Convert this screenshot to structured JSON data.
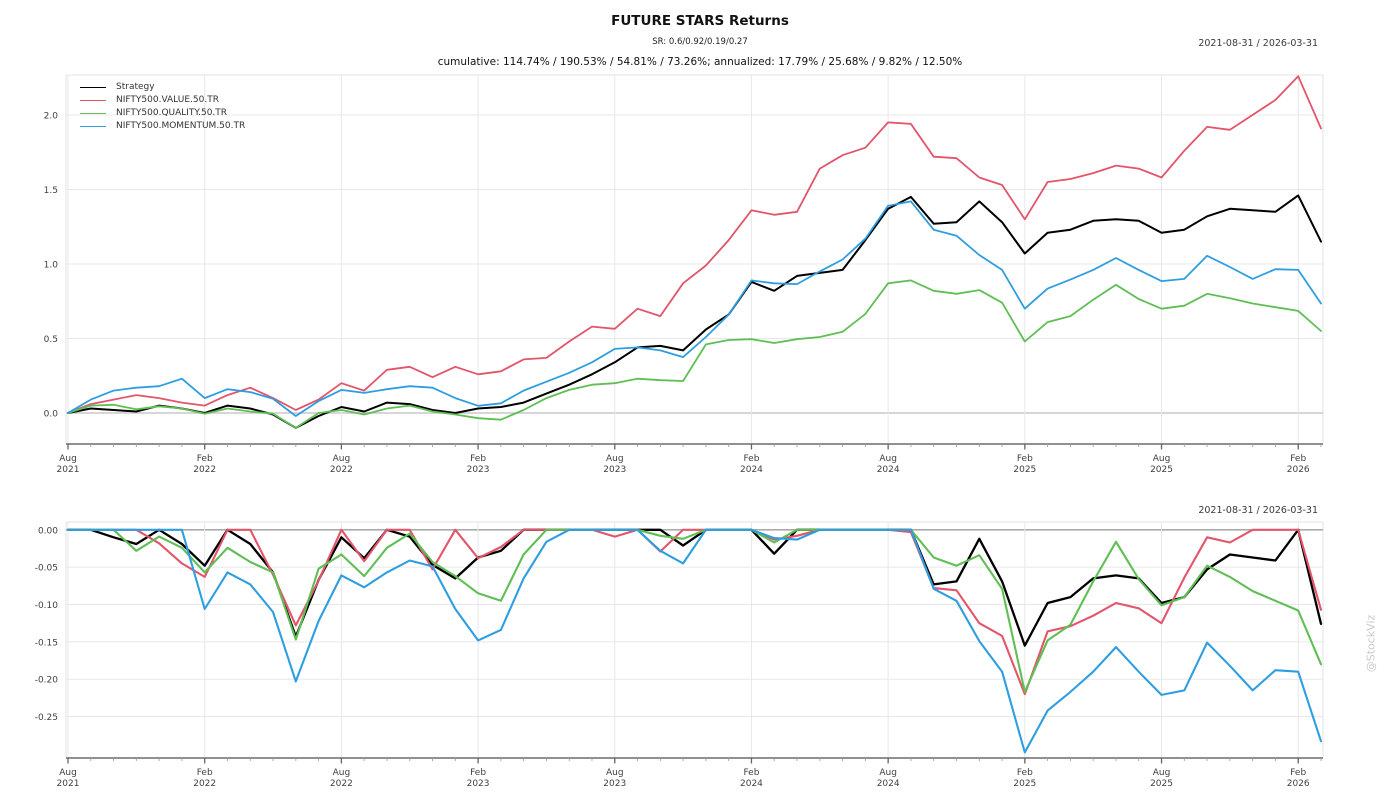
{
  "header": {
    "title": "FUTURE STARS Returns",
    "subtitle": "SR: 0.6/0.92/0.19/0.27",
    "summary": "cumulative: 114.74% / 190.53% / 54.81% / 73.26%; annualized: 17.79% / 25.68% / 9.82% / 12.50%",
    "date_range": "2021-08-31 / 2026-03-31"
  },
  "watermark": "@StockViz",
  "colors": {
    "grid": "#e8e8e8",
    "zero_line_top": "#c8c8c8",
    "zero_line_bottom": "#ababab",
    "axis": "#808080",
    "minor_tick": "#a0a0a0",
    "tick_label": "#3f3f3f",
    "border": "#e3e3e3"
  },
  "chart_data": [
    {
      "type": "line",
      "name": "cumulative-returns",
      "date_label": "2021-08-31 / 2026-03-31",
      "x_months": [
        "2021-08",
        "2021-09",
        "2021-10",
        "2021-11",
        "2021-12",
        "2022-01",
        "2022-02",
        "2022-03",
        "2022-04",
        "2022-05",
        "2022-06",
        "2022-07",
        "2022-08",
        "2022-09",
        "2022-10",
        "2022-11",
        "2022-12",
        "2023-01",
        "2023-02",
        "2023-03",
        "2023-04",
        "2023-05",
        "2023-06",
        "2023-07",
        "2023-08",
        "2023-09",
        "2023-10",
        "2023-11",
        "2023-12",
        "2024-01",
        "2024-02",
        "2024-03",
        "2024-04",
        "2024-05",
        "2024-06",
        "2024-07",
        "2024-08",
        "2024-09",
        "2024-10",
        "2024-11",
        "2024-12",
        "2025-01",
        "2025-02",
        "2025-03",
        "2025-04",
        "2025-05",
        "2025-06",
        "2025-07",
        "2025-08",
        "2025-09",
        "2025-10",
        "2025-11",
        "2025-12",
        "2026-01",
        "2026-02",
        "2026-03"
      ],
      "x_ticks": [
        {
          "index": 0,
          "month": "Aug",
          "year": "2021"
        },
        {
          "index": 6,
          "month": "Feb",
          "year": "2022"
        },
        {
          "index": 12,
          "month": "Aug",
          "year": "2022"
        },
        {
          "index": 18,
          "month": "Feb",
          "year": "2023"
        },
        {
          "index": 24,
          "month": "Aug",
          "year": "2023"
        },
        {
          "index": 30,
          "month": "Feb",
          "year": "2024"
        },
        {
          "index": 36,
          "month": "Aug",
          "year": "2024"
        },
        {
          "index": 42,
          "month": "Feb",
          "year": "2025"
        },
        {
          "index": 48,
          "month": "Aug",
          "year": "2025"
        },
        {
          "index": 54,
          "month": "Feb",
          "year": "2026"
        }
      ],
      "y_ticks": [
        {
          "v": 0.0,
          "label": "0.0"
        },
        {
          "v": 0.5,
          "label": "0.5"
        },
        {
          "v": 1.0,
          "label": "1.0"
        },
        {
          "v": 1.5,
          "label": "1.5"
        },
        {
          "v": 2.0,
          "label": "2.0"
        }
      ],
      "ylim": [
        -0.208,
        2.268
      ],
      "legend_position": "top-left",
      "series": [
        {
          "name": "Strategy",
          "color": "#000000",
          "values": [
            0,
            0.03,
            0.02,
            0.01,
            0.05,
            0.03,
            0,
            0.05,
            0.03,
            -0.01,
            -0.1,
            -0.02,
            0.04,
            0.01,
            0.07,
            0.06,
            0.02,
            0,
            0.03,
            0.04,
            0.07,
            0.13,
            0.19,
            0.26,
            0.34,
            0.44,
            0.45,
            0.42,
            0.56,
            0.66,
            0.88,
            0.82,
            0.92,
            0.94,
            0.96,
            1.16,
            1.37,
            1.45,
            1.27,
            1.28,
            1.42,
            1.28,
            1.07,
            1.21,
            1.23,
            1.29,
            1.3,
            1.29,
            1.21,
            1.23,
            1.32,
            1.37,
            1.36,
            1.35,
            1.46,
            1.15
          ]
        },
        {
          "name": "NIFTY500.VALUE.50.TR",
          "color": "#e2556b",
          "values": [
            0,
            0.06,
            0.09,
            0.12,
            0.1,
            0.07,
            0.05,
            0.12,
            0.17,
            0.1,
            0.02,
            0.09,
            0.2,
            0.15,
            0.29,
            0.31,
            0.24,
            0.31,
            0.26,
            0.28,
            0.36,
            0.37,
            0.48,
            0.58,
            0.565,
            0.7,
            0.65,
            0.87,
            0.99,
            1.16,
            1.36,
            1.33,
            1.35,
            1.64,
            1.73,
            1.78,
            1.95,
            1.94,
            1.72,
            1.71,
            1.58,
            1.53,
            1.3,
            1.55,
            1.57,
            1.61,
            1.66,
            1.64,
            1.58,
            1.76,
            1.92,
            1.9,
            2.0,
            2.1,
            2.26,
            1.91
          ]
        },
        {
          "name": "NIFTY500.QUALITY.50.TR",
          "color": "#5fbf54",
          "values": [
            0,
            0.05,
            0.055,
            0.025,
            0.045,
            0.03,
            -0.005,
            0.03,
            0.01,
            -0.005,
            -0.1,
            0,
            0.02,
            -0.01,
            0.03,
            0.05,
            0.01,
            -0.01,
            -0.035,
            -0.045,
            0.02,
            0.1,
            0.155,
            0.19,
            0.2,
            0.23,
            0.22,
            0.215,
            0.46,
            0.49,
            0.495,
            0.47,
            0.495,
            0.51,
            0.545,
            0.665,
            0.87,
            0.89,
            0.82,
            0.8,
            0.825,
            0.74,
            0.48,
            0.61,
            0.65,
            0.76,
            0.86,
            0.765,
            0.7,
            0.72,
            0.8,
            0.77,
            0.735,
            0.71,
            0.685,
            0.55
          ]
        },
        {
          "name": "NIFTY500.MOMENTUM.50.TR",
          "color": "#2e9ee0",
          "values": [
            0,
            0.09,
            0.15,
            0.17,
            0.18,
            0.23,
            0.1,
            0.16,
            0.14,
            0.095,
            -0.02,
            0.08,
            0.155,
            0.135,
            0.16,
            0.18,
            0.17,
            0.1,
            0.048,
            0.065,
            0.15,
            0.21,
            0.27,
            0.34,
            0.43,
            0.44,
            0.42,
            0.375,
            0.51,
            0.66,
            0.89,
            0.87,
            0.865,
            0.95,
            1.03,
            1.17,
            1.39,
            1.42,
            1.23,
            1.19,
            1.06,
            0.96,
            0.7,
            0.835,
            0.895,
            0.96,
            1.04,
            0.96,
            0.885,
            0.9,
            1.055,
            0.98,
            0.9,
            0.965,
            0.96,
            0.735
          ]
        }
      ]
    },
    {
      "type": "line",
      "name": "drawdowns",
      "date_label": "2021-08-31 / 2026-03-31",
      "x_months": [
        "2021-08",
        "2021-09",
        "2021-10",
        "2021-11",
        "2021-12",
        "2022-01",
        "2022-02",
        "2022-03",
        "2022-04",
        "2022-05",
        "2022-06",
        "2022-07",
        "2022-08",
        "2022-09",
        "2022-10",
        "2022-11",
        "2022-12",
        "2023-01",
        "2023-02",
        "2023-03",
        "2023-04",
        "2023-05",
        "2023-06",
        "2023-07",
        "2023-08",
        "2023-09",
        "2023-10",
        "2023-11",
        "2023-12",
        "2024-01",
        "2024-02",
        "2024-03",
        "2024-04",
        "2024-05",
        "2024-06",
        "2024-07",
        "2024-08",
        "2024-09",
        "2024-10",
        "2024-11",
        "2024-12",
        "2025-01",
        "2025-02",
        "2025-03",
        "2025-04",
        "2025-05",
        "2025-06",
        "2025-07",
        "2025-08",
        "2025-09",
        "2025-10",
        "2025-11",
        "2025-12",
        "2026-01",
        "2026-02",
        "2026-03"
      ],
      "x_ticks": [
        {
          "index": 0,
          "month": "Aug",
          "year": "2021"
        },
        {
          "index": 6,
          "month": "Feb",
          "year": "2022"
        },
        {
          "index": 12,
          "month": "Aug",
          "year": "2022"
        },
        {
          "index": 18,
          "month": "Feb",
          "year": "2023"
        },
        {
          "index": 24,
          "month": "Aug",
          "year": "2023"
        },
        {
          "index": 30,
          "month": "Feb",
          "year": "2024"
        },
        {
          "index": 36,
          "month": "Aug",
          "year": "2024"
        },
        {
          "index": 42,
          "month": "Feb",
          "year": "2025"
        },
        {
          "index": 48,
          "month": "Aug",
          "year": "2025"
        },
        {
          "index": 54,
          "month": "Feb",
          "year": "2026"
        }
      ],
      "y_ticks": [
        {
          "v": 0.0,
          "label": "0.00"
        },
        {
          "v": -0.05,
          "label": "-0.05"
        },
        {
          "v": -0.1,
          "label": "-0.10"
        },
        {
          "v": -0.15,
          "label": "-0.15"
        },
        {
          "v": -0.2,
          "label": "-0.20"
        },
        {
          "v": -0.25,
          "label": "-0.25"
        }
      ],
      "ylim": [
        -0.3055,
        0.0105
      ],
      "legend_position": "none",
      "series": [
        {
          "name": "Strategy",
          "color": "#000000",
          "values": [
            0,
            0,
            -0.01,
            -0.019,
            0,
            -0.019,
            -0.048,
            0,
            -0.019,
            -0.057,
            -0.143,
            -0.067,
            -0.01,
            -0.038,
            0,
            -0.009,
            -0.047,
            -0.065,
            -0.037,
            -0.028,
            0,
            0,
            0,
            0,
            0,
            0,
            0,
            -0.021,
            0,
            0,
            0,
            -0.032,
            0,
            0,
            0,
            0,
            0,
            0,
            -0.073,
            -0.069,
            -0.012,
            -0.069,
            -0.155,
            -0.098,
            -0.09,
            -0.065,
            -0.061,
            -0.065,
            -0.098,
            -0.09,
            -0.053,
            -0.033,
            -0.037,
            -0.041,
            0,
            -0.126
          ]
        },
        {
          "name": "NIFTY500.VALUE.50.TR",
          "color": "#e2556b",
          "values": [
            0,
            0,
            0,
            0,
            -0.018,
            -0.045,
            -0.063,
            0,
            0,
            -0.06,
            -0.128,
            -0.068,
            0,
            -0.042,
            0,
            0,
            -0.053,
            0,
            -0.038,
            -0.023,
            0,
            0,
            0,
            0,
            -0.009,
            0,
            -0.029,
            0,
            0,
            0,
            0,
            -0.013,
            -0.008,
            0,
            0,
            0,
            0,
            -0.003,
            -0.078,
            -0.081,
            -0.125,
            -0.142,
            -0.22,
            -0.136,
            -0.129,
            -0.115,
            -0.098,
            -0.105,
            -0.125,
            -0.064,
            -0.01,
            -0.017,
            0,
            0,
            0,
            -0.107
          ]
        },
        {
          "name": "NIFTY500.QUALITY.50.TR",
          "color": "#5fbf54",
          "values": [
            0,
            0,
            0,
            -0.028,
            -0.009,
            -0.024,
            -0.057,
            -0.024,
            -0.043,
            -0.057,
            -0.147,
            -0.052,
            -0.033,
            -0.062,
            -0.024,
            -0.005,
            -0.043,
            -0.062,
            -0.085,
            -0.095,
            -0.033,
            0,
            0,
            0,
            0,
            0,
            -0.008,
            -0.012,
            0,
            0,
            0,
            -0.017,
            0,
            0,
            0,
            0,
            0,
            0,
            -0.037,
            -0.048,
            -0.034,
            -0.079,
            -0.217,
            -0.148,
            -0.127,
            -0.069,
            -0.016,
            -0.066,
            -0.101,
            -0.09,
            -0.048,
            -0.063,
            -0.082,
            -0.095,
            -0.108,
            -0.18
          ]
        },
        {
          "name": "NIFTY500.MOMENTUM.50.TR",
          "color": "#2e9ee0",
          "values": [
            0,
            0,
            0,
            0,
            0,
            0,
            -0.106,
            -0.057,
            -0.073,
            -0.11,
            -0.203,
            -0.122,
            -0.061,
            -0.077,
            -0.057,
            -0.041,
            -0.049,
            -0.106,
            -0.148,
            -0.134,
            -0.065,
            -0.016,
            0,
            0,
            0,
            0,
            -0.028,
            -0.045,
            0,
            0,
            0,
            -0.011,
            -0.013,
            0,
            0,
            0,
            0,
            0,
            -0.079,
            -0.095,
            -0.149,
            -0.19,
            -0.298,
            -0.242,
            -0.217,
            -0.19,
            -0.157,
            -0.19,
            -0.221,
            -0.215,
            -0.151,
            -0.182,
            -0.215,
            -0.188,
            -0.19,
            -0.283
          ]
        }
      ]
    }
  ]
}
